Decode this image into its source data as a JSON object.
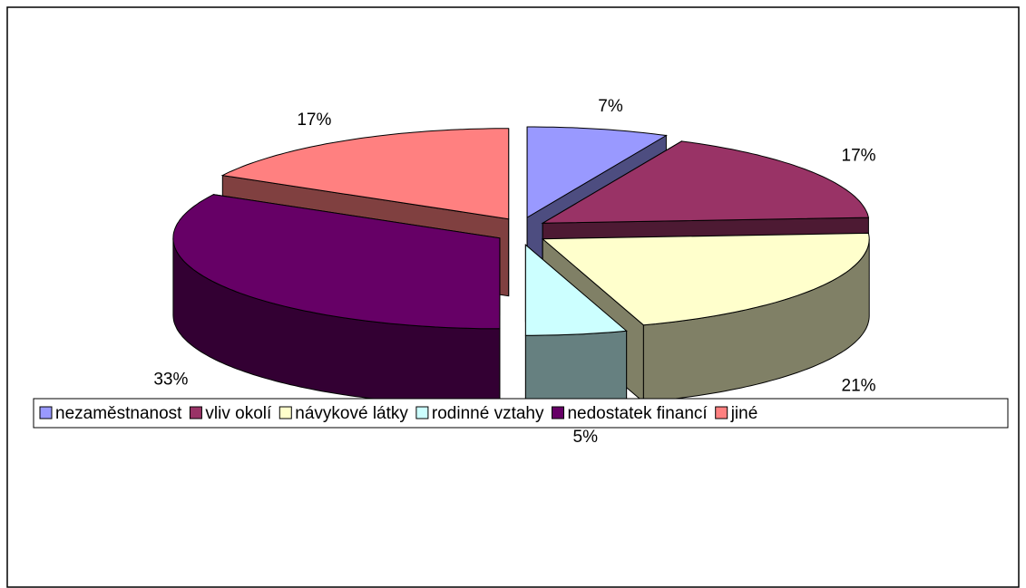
{
  "chart_data": {
    "type": "pie3d",
    "categories": [
      "nezaměstnanost",
      "vliv okolí",
      "návykové látky",
      "rodinné vztahy",
      "nedostatek financí",
      "jiné"
    ],
    "values": [
      7,
      17,
      21,
      5,
      33,
      17
    ],
    "value_labels": [
      "7%",
      "17%",
      "21%",
      "5%",
      "33%",
      "17%"
    ],
    "colors": [
      "#9999ff",
      "#993366",
      "#ffffcc",
      "#ccffff",
      "#660066",
      "#ff8080"
    ],
    "legend": "bottom"
  }
}
